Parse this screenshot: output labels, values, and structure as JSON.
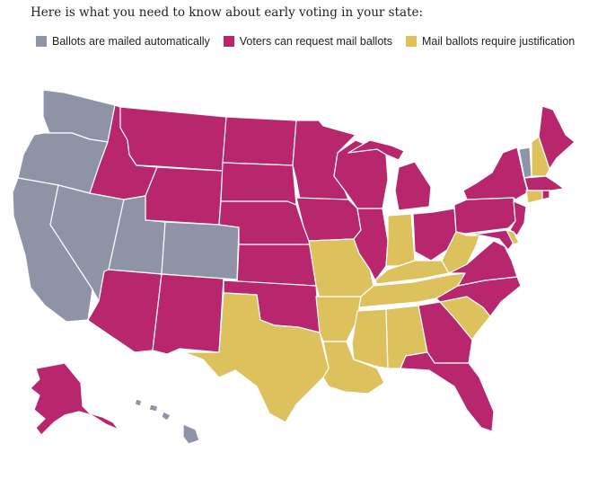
{
  "heading": "Here is what you need to know about early voting in your state:",
  "colors": {
    "mailed_automatically": "#8e93a5",
    "request_mail": "#b8276e",
    "require_justification": "#dcc15d"
  },
  "legend": [
    {
      "label": "Ballots are mailed automatically",
      "category": "mailed_automatically"
    },
    {
      "label": "Voters can request mail ballots",
      "category": "request_mail"
    },
    {
      "label": "Mail ballots require justification",
      "category": "require_justification"
    }
  ],
  "states": {
    "WA": "mailed_automatically",
    "OR": "mailed_automatically",
    "CA": "mailed_automatically",
    "NV": "mailed_automatically",
    "UT": "mailed_automatically",
    "CO": "mailed_automatically",
    "HI": "mailed_automatically",
    "VT": "mailed_automatically",
    "ID": "request_mail",
    "MT": "request_mail",
    "WY": "request_mail",
    "ND": "request_mail",
    "SD": "request_mail",
    "NE": "request_mail",
    "KS": "request_mail",
    "OK": "request_mail",
    "MN": "request_mail",
    "IA": "request_mail",
    "WI": "request_mail",
    "IL": "request_mail",
    "MI": "request_mail",
    "OH": "request_mail",
    "PA": "request_mail",
    "NY": "request_mail",
    "ME": "request_mail",
    "MA": "request_mail",
    "RI": "request_mail",
    "NJ": "request_mail",
    "MD": "request_mail",
    "VA": "request_mail",
    "NC": "request_mail",
    "GA": "request_mail",
    "FL": "request_mail",
    "AZ": "request_mail",
    "NM": "request_mail",
    "AK": "request_mail",
    "TX": "require_justification",
    "MO": "require_justification",
    "AR": "require_justification",
    "LA": "require_justification",
    "MS": "require_justification",
    "AL": "require_justification",
    "TN": "require_justification",
    "KY": "require_justification",
    "IN": "require_justification",
    "WV": "require_justification",
    "SC": "require_justification",
    "NH": "require_justification",
    "CT": "require_justification",
    "DE": "require_justification"
  }
}
